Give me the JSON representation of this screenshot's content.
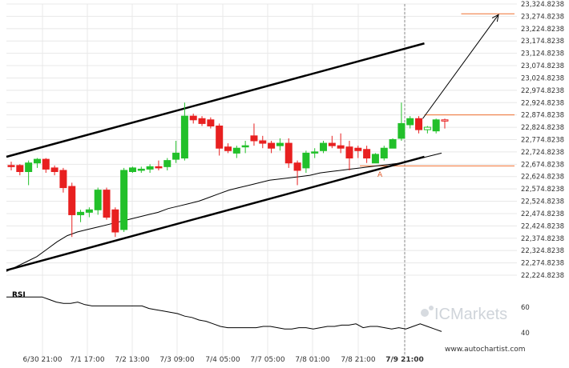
{
  "chart_data": {
    "type": "candlestick",
    "price_axis": {
      "ticks": [
        "23,324.8238",
        "23,274.8238",
        "23,224.8238",
        "23,174.8238",
        "23,124.8238",
        "23,074.8238",
        "23,024.8238",
        "22,974.8238",
        "22,924.8238",
        "22,874.8238",
        "22,824.8238",
        "22,774.8238",
        "22,724.8238",
        "22,674.8238",
        "22,624.8238",
        "22,574.8238",
        "22,524.8238",
        "22,474.8238",
        "22,424.8238",
        "22,374.8238",
        "22,324.8238",
        "22,274.8238",
        "22,224.8238"
      ],
      "range": [
        22224.8238,
        23324.8238
      ]
    },
    "time_axis": {
      "labels": [
        "6/30 21:00",
        "7/1 17:00",
        "7/2 13:00",
        "7/3 09:00",
        "7/4 05:00",
        "7/7 05:00",
        "7/8 01:00",
        "7/8 21:00",
        "7/9 21:00"
      ],
      "highlighted": "7/9 21:00"
    },
    "candles": [
      {
        "o": 22670,
        "h": 22685,
        "l": 22650,
        "c": 22665
      },
      {
        "o": 22670,
        "h": 22675,
        "l": 22630,
        "c": 22645
      },
      {
        "o": 22645,
        "h": 22690,
        "l": 22590,
        "c": 22680
      },
      {
        "o": 22680,
        "h": 22700,
        "l": 22660,
        "c": 22695
      },
      {
        "o": 22695,
        "h": 22700,
        "l": 22640,
        "c": 22655
      },
      {
        "o": 22660,
        "h": 22670,
        "l": 22630,
        "c": 22645
      },
      {
        "o": 22650,
        "h": 22660,
        "l": 22560,
        "c": 22580
      },
      {
        "o": 22585,
        "h": 22600,
        "l": 22380,
        "c": 22470
      },
      {
        "o": 22470,
        "h": 22490,
        "l": 22440,
        "c": 22480
      },
      {
        "o": 22480,
        "h": 22500,
        "l": 22460,
        "c": 22490
      },
      {
        "o": 22490,
        "h": 22580,
        "l": 22470,
        "c": 22570
      },
      {
        "o": 22570,
        "h": 22580,
        "l": 22450,
        "c": 22460
      },
      {
        "o": 22490,
        "h": 22500,
        "l": 22380,
        "c": 22400
      },
      {
        "o": 22410,
        "h": 22660,
        "l": 22400,
        "c": 22650
      },
      {
        "o": 22645,
        "h": 22665,
        "l": 22640,
        "c": 22660
      },
      {
        "o": 22650,
        "h": 22665,
        "l": 22640,
        "c": 22655
      },
      {
        "o": 22655,
        "h": 22675,
        "l": 22640,
        "c": 22665
      },
      {
        "o": 22665,
        "h": 22690,
        "l": 22650,
        "c": 22660
      },
      {
        "o": 22665,
        "h": 22700,
        "l": 22650,
        "c": 22690
      },
      {
        "o": 22695,
        "h": 22770,
        "l": 22680,
        "c": 22720
      },
      {
        "o": 22700,
        "h": 22925,
        "l": 22690,
        "c": 22870
      },
      {
        "o": 22870,
        "h": 22880,
        "l": 22840,
        "c": 22855
      },
      {
        "o": 22860,
        "h": 22870,
        "l": 22830,
        "c": 22840
      },
      {
        "o": 22855,
        "h": 22865,
        "l": 22820,
        "c": 22830
      },
      {
        "o": 22830,
        "h": 22840,
        "l": 22710,
        "c": 22740
      },
      {
        "o": 22745,
        "h": 22760,
        "l": 22720,
        "c": 22730
      },
      {
        "o": 22720,
        "h": 22750,
        "l": 22700,
        "c": 22740
      },
      {
        "o": 22745,
        "h": 22770,
        "l": 22720,
        "c": 22750
      },
      {
        "o": 22790,
        "h": 22840,
        "l": 22750,
        "c": 22770
      },
      {
        "o": 22770,
        "h": 22790,
        "l": 22740,
        "c": 22760
      },
      {
        "o": 22760,
        "h": 22770,
        "l": 22720,
        "c": 22740
      },
      {
        "o": 22750,
        "h": 22780,
        "l": 22730,
        "c": 22760
      },
      {
        "o": 22760,
        "h": 22780,
        "l": 22660,
        "c": 22680
      },
      {
        "o": 22680,
        "h": 22690,
        "l": 22590,
        "c": 22650
      },
      {
        "o": 22660,
        "h": 22730,
        "l": 22640,
        "c": 22720
      },
      {
        "o": 22720,
        "h": 22740,
        "l": 22700,
        "c": 22725
      },
      {
        "o": 22730,
        "h": 22770,
        "l": 22720,
        "c": 22760
      },
      {
        "o": 22760,
        "h": 22790,
        "l": 22740,
        "c": 22750
      },
      {
        "o": 22750,
        "h": 22800,
        "l": 22720,
        "c": 22740
      },
      {
        "o": 22745,
        "h": 22770,
        "l": 22650,
        "c": 22700
      },
      {
        "o": 22740,
        "h": 22750,
        "l": 22700,
        "c": 22730
      },
      {
        "o": 22735,
        "h": 22750,
        "l": 22680,
        "c": 22700
      },
      {
        "o": 22680,
        "h": 22720,
        "l": 22680,
        "c": 22715
      },
      {
        "o": 22700,
        "h": 22750,
        "l": 22690,
        "c": 22740
      },
      {
        "o": 22740,
        "h": 22780,
        "l": 22740,
        "c": 22775
      },
      {
        "o": 22780,
        "h": 22925,
        "l": 22770,
        "c": 22840
      },
      {
        "o": 22835,
        "h": 22870,
        "l": 22820,
        "c": 22860
      },
      {
        "o": 22860,
        "h": 22870,
        "l": 22800,
        "c": 22815
      },
      {
        "o": 22815,
        "h": 22830,
        "l": 22800,
        "c": 22825
      },
      {
        "o": 22810,
        "h": 22860,
        "l": 22800,
        "c": 22855
      },
      {
        "o": 22855,
        "h": 22860,
        "l": 22820,
        "c": 22850
      }
    ],
    "moving_average": [
      22240,
      22260,
      22280,
      22300,
      22330,
      22360,
      22385,
      22400,
      22410,
      22420,
      22430,
      22440,
      22450,
      22460,
      22470,
      22480,
      22495,
      22505,
      22515,
      22525,
      22540,
      22555,
      22570,
      22580,
      22590,
      22600,
      22610,
      22615,
      22620,
      22625,
      22630,
      22640,
      22645,
      22650,
      22655,
      22660,
      22665,
      22670,
      22675,
      22680,
      22690,
      22700,
      22710,
      22720
    ],
    "channel": {
      "upper": {
        "from": {
          "i": 0,
          "price": 22705
        },
        "to": {
          "i": 45,
          "price": 23165
        }
      },
      "lower": {
        "from": {
          "i": 0,
          "price": 22245
        },
        "to": {
          "i": 45,
          "price": 22705
        }
      }
    },
    "levels": [
      {
        "price": 23285,
        "color": "#f07030",
        "start_i": 49
      },
      {
        "price": 22875,
        "color": "#f07030",
        "start_i": 45
      },
      {
        "price": 22668,
        "color": "#f07030",
        "start_i": 38
      }
    ],
    "forecast_arrow": {
      "from": {
        "i": 45,
        "price": 22860
      },
      "to": {
        "i": 55,
        "price": 23285
      }
    },
    "pattern_point": {
      "label": "A",
      "i": 42,
      "price": 22675
    },
    "rsi": {
      "label": "RSI",
      "ticks": [
        "60",
        "40"
      ],
      "range": [
        25,
        75
      ],
      "values": [
        68,
        68,
        68,
        68,
        68,
        68,
        66,
        64,
        63,
        63,
        64,
        62,
        61,
        61,
        61,
        61,
        61,
        61,
        61,
        61,
        59,
        58,
        57,
        56,
        55,
        53,
        52,
        50,
        49,
        47,
        45,
        44,
        44,
        44,
        44,
        44,
        45,
        45,
        44,
        43,
        43,
        44,
        44,
        43,
        44,
        45,
        45,
        46,
        46,
        47,
        44,
        45,
        45,
        44,
        43,
        44,
        43,
        45,
        47,
        45,
        43,
        41
      ]
    },
    "colors": {
      "bull": "#22c02a",
      "bear": "#e82020",
      "grid": "#e8e8e8",
      "level": "#f07030",
      "vline": "#888888"
    },
    "branding": {
      "logo_text": "ICMarkets",
      "site": "www.autochartist.com"
    }
  }
}
